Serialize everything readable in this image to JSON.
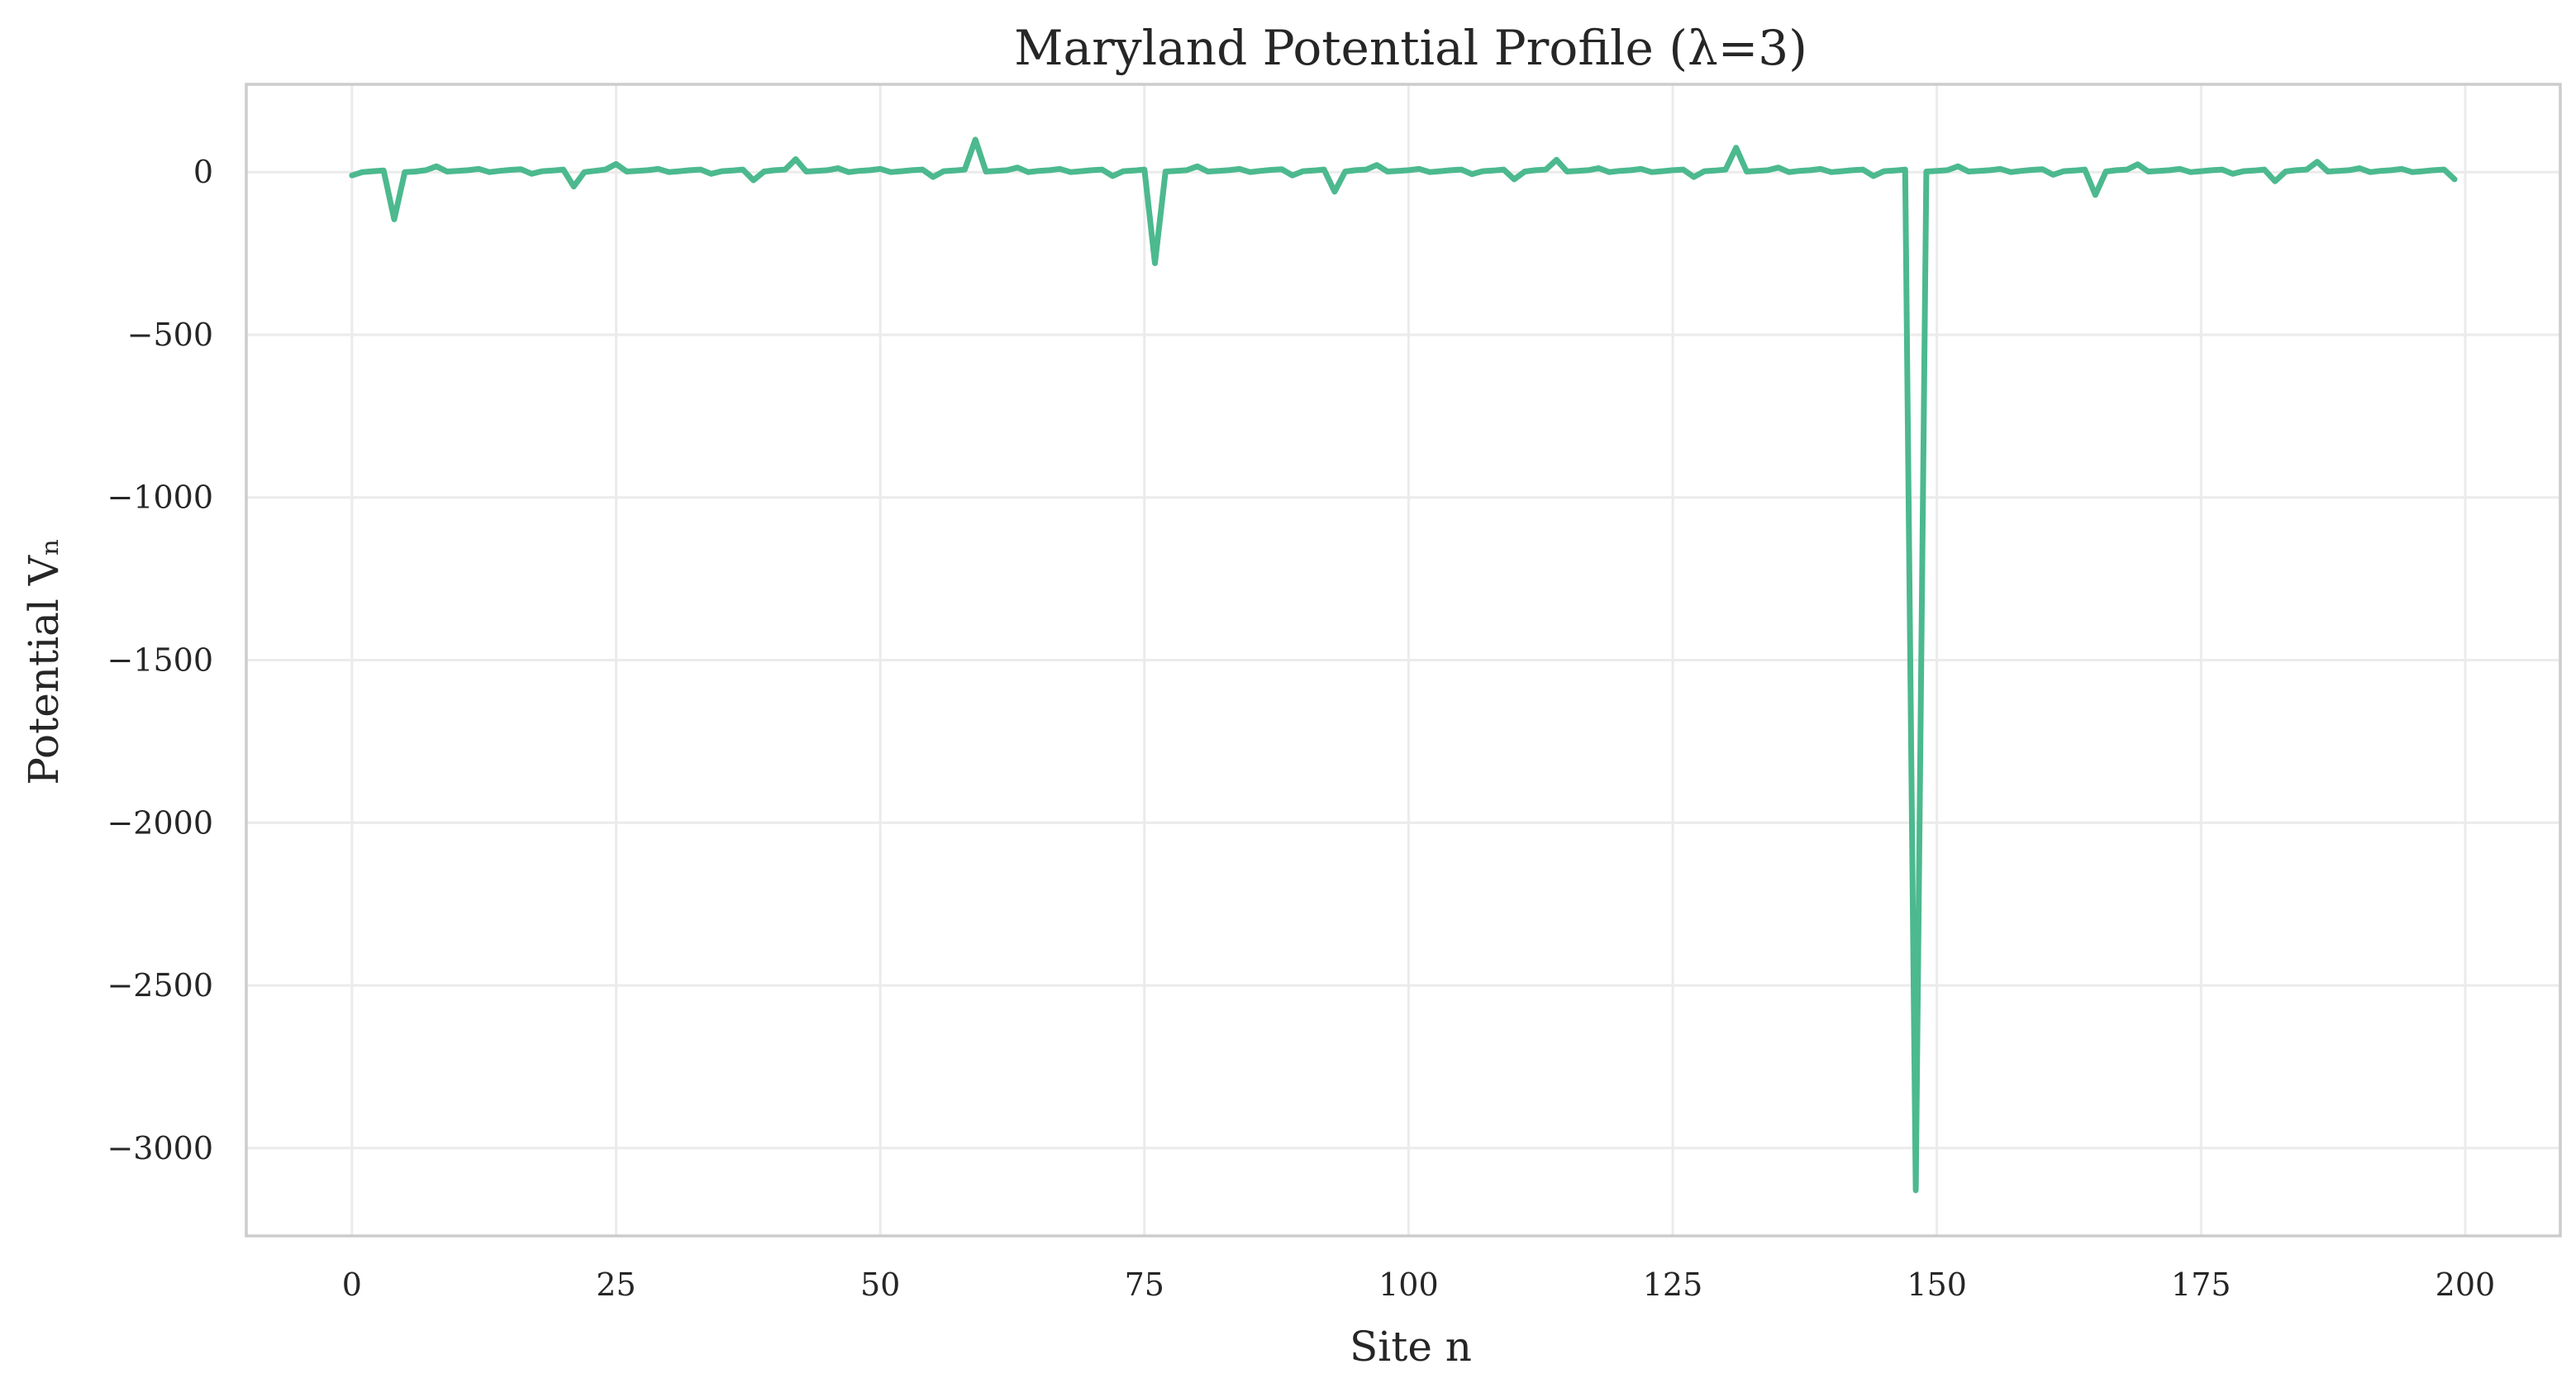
{
  "chart_data": {
    "type": "line",
    "title": "Maryland Potential Profile (λ=3)",
    "xlabel": "Site n",
    "ylabel": "Potential Vₙ",
    "xlim": [
      -10,
      209
    ],
    "ylim": [
      -3270,
      270
    ],
    "xticks": [
      0,
      25,
      50,
      75,
      100,
      125,
      150,
      175,
      200
    ],
    "yticks": [
      0,
      -500,
      -1000,
      -1500,
      -2000,
      -2500,
      -3000
    ],
    "xtick_labels": [
      "0",
      "25",
      "50",
      "75",
      "100",
      "125",
      "150",
      "175",
      "200"
    ],
    "ytick_labels": [
      "0",
      "−500",
      "−1000",
      "−1500",
      "−2000",
      "−2500",
      "−3000"
    ],
    "grid": true,
    "line_color": "#4cb98e",
    "series": [
      {
        "values": [
          -10,
          0,
          3,
          5,
          -145,
          0,
          2,
          6,
          18,
          2,
          4,
          6,
          10,
          0,
          4,
          7,
          9,
          -5,
          3,
          5,
          8,
          -44,
          0,
          4,
          8,
          25,
          2,
          4,
          6,
          10,
          0,
          3,
          6,
          8,
          -5,
          3,
          5,
          8,
          -25,
          2,
          6,
          8,
          40,
          2,
          4,
          6,
          12,
          0,
          4,
          6,
          10,
          0,
          3,
          6,
          8,
          -15,
          3,
          5,
          8,
          100,
          2,
          4,
          6,
          14,
          0,
          4,
          6,
          10,
          0,
          3,
          6,
          8,
          -12,
          3,
          5,
          8,
          -280,
          2,
          4,
          6,
          18,
          2,
          4,
          6,
          10,
          0,
          4,
          7,
          9,
          -10,
          3,
          5,
          8,
          -60,
          2,
          6,
          8,
          22,
          2,
          4,
          6,
          10,
          0,
          3,
          6,
          8,
          -6,
          3,
          5,
          8,
          -22,
          2,
          6,
          8,
          38,
          2,
          4,
          6,
          12,
          0,
          4,
          6,
          10,
          0,
          3,
          6,
          8,
          -15,
          3,
          5,
          8,
          75,
          2,
          4,
          6,
          14,
          0,
          4,
          6,
          10,
          0,
          3,
          6,
          8,
          -12,
          3,
          5,
          8,
          -3130,
          2,
          4,
          6,
          18,
          2,
          4,
          6,
          10,
          0,
          4,
          7,
          9,
          -8,
          3,
          5,
          8,
          -70,
          2,
          6,
          8,
          24,
          2,
          4,
          6,
          10,
          0,
          3,
          6,
          8,
          -5,
          3,
          5,
          8,
          -28,
          2,
          6,
          8,
          32,
          2,
          4,
          6,
          12,
          0,
          4,
          6,
          10,
          0,
          3,
          6,
          8,
          -22
        ]
      }
    ]
  }
}
